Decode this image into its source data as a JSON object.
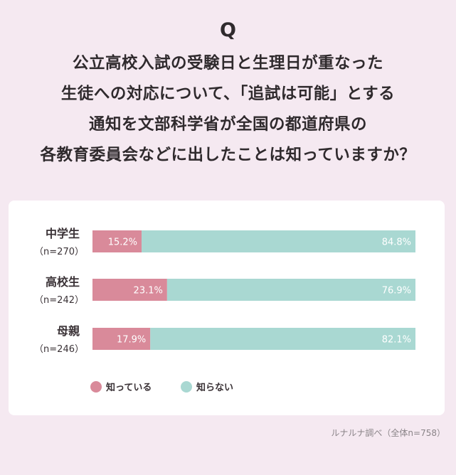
{
  "question": {
    "mark": "Q",
    "lines": [
      "公立高校入試の受験日と生理日が重なった",
      "生徒への対応について、「追試は可能」とする",
      "通知を文部科学省が全国の都道府県の",
      "各教育委員会などに出したことは知っていますか？"
    ]
  },
  "chart_data": {
    "type": "bar",
    "stacked": true,
    "orientation": "horizontal",
    "categories": [
      {
        "name": "中学生",
        "n": "（n=270）"
      },
      {
        "name": "高校生",
        "n": "（n=242）"
      },
      {
        "name": "母親",
        "n": "（n=246）"
      }
    ],
    "series": [
      {
        "name": "知っている",
        "color": "#d98a9a",
        "values": [
          15.2,
          23.1,
          17.9
        ],
        "labels": [
          "15.2%",
          "23.1%",
          "17.9%"
        ]
      },
      {
        "name": "知らない",
        "color": "#a9d8d2",
        "values": [
          84.8,
          76.9,
          82.1
        ],
        "labels": [
          "84.8%",
          "76.9%",
          "82.1%"
        ]
      }
    ],
    "xlim": [
      0,
      100
    ],
    "legend_position": "bottom-left"
  },
  "source": "ルナルナ調べ（全体n=758）"
}
